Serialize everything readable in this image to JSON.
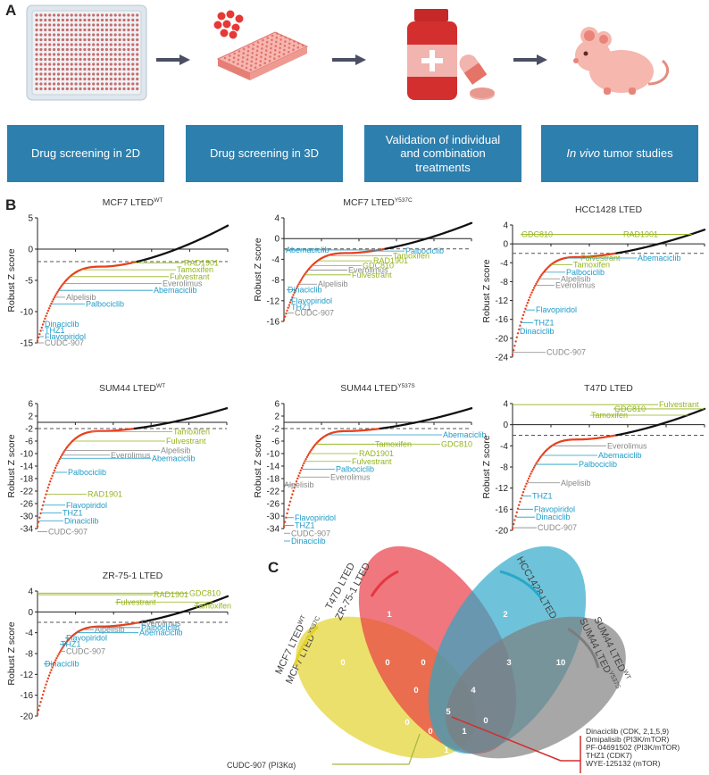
{
  "panels": {
    "a": "A",
    "b": "B",
    "c": "C"
  },
  "workflow": [
    {
      "label": "Drug screening in 2D"
    },
    {
      "label": "Drug screening in 3D"
    },
    {
      "label": "Validation of individual and combination treatments"
    },
    {
      "label_italic": "In vivo",
      "label": " tumor studies"
    }
  ],
  "colors": {
    "box": "#2d7fae",
    "red": "#e8401c",
    "blue": "#1f9bc7",
    "green": "#93b41e",
    "gray": "#888888",
    "curve": "#111111"
  },
  "chart_data": [
    {
      "type": "scatter",
      "title": "MCF7 LTED",
      "title_sup": "WT",
      "ylabel": "Robust Z score",
      "yticks": [
        5,
        0,
        -5,
        -10,
        -15
      ],
      "ylim": [
        -15,
        5
      ],
      "threshold": -2,
      "labels": [
        {
          "text": "RAD1901",
          "color": "green",
          "y": -2.2
        },
        {
          "text": "Tamoxifen",
          "color": "green",
          "y": -3.3
        },
        {
          "text": "Fulvestrant",
          "color": "green",
          "y": -4.4
        },
        {
          "text": "Everolimus",
          "color": "gray",
          "y": -5.5
        },
        {
          "text": "Abemaciclib",
          "color": "blue",
          "y": -6.6
        },
        {
          "text": "Alpelisib",
          "color": "gray",
          "y": -7.7
        },
        {
          "text": "Palbociclib",
          "color": "blue",
          "y": -8.8
        },
        {
          "text": "Dinaciclib",
          "color": "blue",
          "y": -12.0
        },
        {
          "text": "THZ1",
          "color": "blue",
          "y": -13.0
        },
        {
          "text": "Flavopiridol",
          "color": "blue",
          "y": -14.0
        },
        {
          "text": "CUDC-907",
          "color": "gray",
          "y": -15.0
        }
      ]
    },
    {
      "type": "scatter",
      "title": "MCF7 LTED",
      "title_sup": "Y537C",
      "ylabel": "Robust Z score",
      "yticks": [
        4,
        0,
        -4,
        -8,
        -12,
        -16
      ],
      "ylim": [
        -16,
        4
      ],
      "threshold": -2,
      "labels": [
        {
          "text": "Abemaciclib",
          "color": "blue",
          "y": -2.2
        },
        {
          "text": "Palbociclib",
          "color": "blue",
          "y": -2.4
        },
        {
          "text": "Tamoxifen",
          "color": "green",
          "y": -3.3
        },
        {
          "text": "RAD1901",
          "color": "green",
          "y": -4.3
        },
        {
          "text": "GDC810",
          "color": "green",
          "y": -5.2
        },
        {
          "text": "Everolimus",
          "color": "gray",
          "y": -6.1
        },
        {
          "text": "Fulvestrant",
          "color": "green",
          "y": -7.0
        },
        {
          "text": "Alpelisib",
          "color": "gray",
          "y": -8.8
        },
        {
          "text": "Dinaciclib",
          "color": "blue",
          "y": -9.9
        },
        {
          "text": "Flavopiridol",
          "color": "blue",
          "y": -12.0
        },
        {
          "text": "THZ1",
          "color": "blue",
          "y": -13.2
        },
        {
          "text": "CUDC-907",
          "color": "gray",
          "y": -14.4
        }
      ]
    },
    {
      "type": "scatter",
      "title": "HCC1428 LTED",
      "ylabel": "Robust Z score",
      "yticks": [
        4,
        0,
        -4,
        -8,
        -12,
        -16,
        -20,
        -24
      ],
      "ylim": [
        -24,
        4
      ],
      "threshold": -2,
      "labels": [
        {
          "text": "GDC810",
          "color": "green",
          "y": 2.0
        },
        {
          "text": "RAD1901",
          "color": "green",
          "y": 2.0
        },
        {
          "text": "Fulvestrant",
          "color": "green",
          "y": -3.0
        },
        {
          "text": "Abemaciclib",
          "color": "blue",
          "y": -3.0
        },
        {
          "text": "Tamoxifen",
          "color": "green",
          "y": -4.4
        },
        {
          "text": "Palbociclib",
          "color": "blue",
          "y": -6.0
        },
        {
          "text": "Alpelisib",
          "color": "gray",
          "y": -7.4
        },
        {
          "text": "Everolimus",
          "color": "gray",
          "y": -8.8
        },
        {
          "text": "Flavopiridol",
          "color": "blue",
          "y": -14.0
        },
        {
          "text": "THZ1",
          "color": "blue",
          "y": -16.7
        },
        {
          "text": "Dinaciclib",
          "color": "blue",
          "y": -18.5
        },
        {
          "text": "CUDC-907",
          "color": "gray",
          "y": -23.0
        }
      ]
    },
    {
      "type": "scatter",
      "title": "SUM44 LTED",
      "title_sup": "WT",
      "ylabel": "Robust Z score",
      "yticks": [
        6,
        2,
        -2,
        -6,
        -10,
        -14,
        -18,
        -22,
        -26,
        -30,
        -34
      ],
      "ylim": [
        -34,
        6
      ],
      "threshold": -2,
      "labels": [
        {
          "text": "Tamoxifen",
          "color": "green",
          "y": -3.0
        },
        {
          "text": "Fulvestrant",
          "color": "green",
          "y": -6.0
        },
        {
          "text": "Alpelisib",
          "color": "gray",
          "y": -9.0
        },
        {
          "text": "Everolimus",
          "color": "gray",
          "y": -10.5
        },
        {
          "text": "Abemaciclib",
          "color": "blue",
          "y": -11.5
        },
        {
          "text": "Palbociclib",
          "color": "blue",
          "y": -16.0
        },
        {
          "text": "RAD1901",
          "color": "green",
          "y": -23.0
        },
        {
          "text": "Flavopiridol",
          "color": "blue",
          "y": -26.5
        },
        {
          "text": "THZ1",
          "color": "blue",
          "y": -29.0
        },
        {
          "text": "Dinaciclib",
          "color": "blue",
          "y": -31.5
        },
        {
          "text": "CUDC-907",
          "color": "gray",
          "y": -35.0
        }
      ]
    },
    {
      "type": "scatter",
      "title": "SUM44 LTED",
      "title_sup": "Y537S",
      "ylabel": "Robust Z score",
      "yticks": [
        6,
        2,
        -2,
        -6,
        -10,
        -14,
        -18,
        -22,
        -26,
        -30,
        -34
      ],
      "ylim": [
        -34,
        6
      ],
      "threshold": -2,
      "labels": [
        {
          "text": "Abemaciclib",
          "color": "blue",
          "y": -4.0
        },
        {
          "text": "GDC810",
          "color": "green",
          "y": -7.0
        },
        {
          "text": "Tamoxifen",
          "color": "green",
          "y": -7.0
        },
        {
          "text": "RAD1901",
          "color": "green",
          "y": -10.0
        },
        {
          "text": "Fulvestrant",
          "color": "green",
          "y": -12.5
        },
        {
          "text": "Palbociclib",
          "color": "blue",
          "y": -15.0
        },
        {
          "text": "Everolimus",
          "color": "gray",
          "y": -17.5
        },
        {
          "text": "Alpelisib",
          "color": "gray",
          "y": -20.0
        },
        {
          "text": "Flavopiridol",
          "color": "blue",
          "y": -30.5
        },
        {
          "text": "THZ1",
          "color": "blue",
          "y": -33.0
        },
        {
          "text": "CUDC-907",
          "color": "gray",
          "y": -35.5
        },
        {
          "text": "Dinaciclib",
          "color": "blue",
          "y": -38.0
        }
      ]
    },
    {
      "type": "scatter",
      "title": "T47D LTED",
      "ylabel": "Robust Z score",
      "yticks": [
        4,
        0,
        -4,
        -8,
        -12,
        -16,
        -20
      ],
      "ylim": [
        -20,
        4
      ],
      "threshold": -2,
      "labels": [
        {
          "text": "GDC810",
          "color": "green",
          "y": 3.0
        },
        {
          "text": "Fulvestrant",
          "color": "green",
          "y": 3.8
        },
        {
          "text": "Tamoxifen",
          "color": "green",
          "y": 1.8
        },
        {
          "text": "Everolimus",
          "color": "gray",
          "y": -4.0
        },
        {
          "text": "Abemaciclib",
          "color": "blue",
          "y": -5.8
        },
        {
          "text": "Palbociclib",
          "color": "blue",
          "y": -7.5
        },
        {
          "text": "Alpelisib",
          "color": "gray",
          "y": -11.0
        },
        {
          "text": "THZ1",
          "color": "blue",
          "y": -13.5
        },
        {
          "text": "Flavopiridol",
          "color": "blue",
          "y": -16.0
        },
        {
          "text": "Dinaciclib",
          "color": "blue",
          "y": -17.5
        },
        {
          "text": "CUDC-907",
          "color": "gray",
          "y": -19.5
        }
      ]
    },
    {
      "type": "scatter",
      "title": "ZR-75-1 LTED",
      "ylabel": "Robust Z score",
      "yticks": [
        4,
        0,
        -4,
        -8,
        -12,
        -16,
        -20
      ],
      "ylim": [
        -20,
        4
      ],
      "threshold": -2,
      "labels": [
        {
          "text": "GDC810",
          "color": "green",
          "y": 3.6
        },
        {
          "text": "RAD1901",
          "color": "green",
          "y": 3.3
        },
        {
          "text": "Fulvestrant",
          "color": "green",
          "y": 1.9
        },
        {
          "text": "Tamoxifen",
          "color": "green",
          "y": 1.2
        },
        {
          "text": "Everolimus",
          "color": "gray",
          "y": -2.2
        },
        {
          "text": "Palbociclib",
          "color": "blue",
          "y": -3.0
        },
        {
          "text": "Alpelisib",
          "color": "gray",
          "y": -3.4
        },
        {
          "text": "Abemaciclib",
          "color": "blue",
          "y": -4.0
        },
        {
          "text": "Flavopiridol",
          "color": "blue",
          "y": -5.0
        },
        {
          "text": "THZ1",
          "color": "blue",
          "y": -6.2
        },
        {
          "text": "CUDC-907",
          "color": "gray",
          "y": -7.6
        },
        {
          "text": "Dinaciclib",
          "color": "blue",
          "y": -10.0
        }
      ]
    }
  ],
  "venn": {
    "sets": [
      {
        "name": "MCF7 LTED",
        "sup": "WT",
        "name2": "MCF7 LTED",
        "sup2": "Y537C",
        "color": "#e3d227"
      },
      {
        "name": "T47D LTED",
        "name2": "ZR-75-1 LTED",
        "color": "#e8363f"
      },
      {
        "name": "HCC1428 LTED",
        "color": "#2aa7c9"
      },
      {
        "name": "SUM44 LTED",
        "sup": "WT",
        "name2": "SUM44 LTED",
        "sup2": "Y537S",
        "color": "#7d7d7d"
      }
    ],
    "counts": [
      "0",
      "1",
      "2",
      "10",
      "0",
      "0",
      "3",
      "0",
      "4",
      "0",
      "5",
      "0",
      "0",
      "1",
      "1"
    ],
    "core_drugs": [
      "Dinaciclib (CDK, 2,1,5,9)",
      "Omipalisib (PI3K/mTOR)",
      "PF-04691502 (PI3K/mTOR)",
      "THZ1 (CDK7)",
      "WYE-125132 (mTOR)"
    ],
    "extra_drug": "CUDC-907 (PI3Kα)"
  }
}
